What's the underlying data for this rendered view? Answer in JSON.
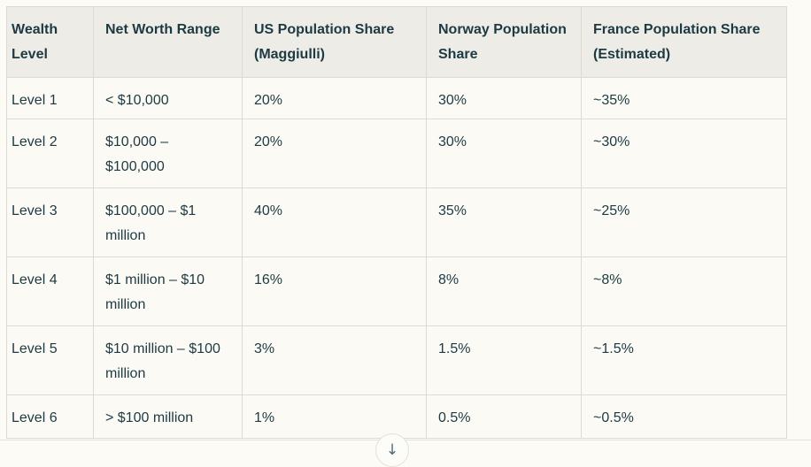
{
  "colors": {
    "page_background": "#fcfbf5",
    "header_background": "#edece6",
    "cell_background": "#fbfaf5",
    "border": "#dbdad3",
    "text": "#1d3a43"
  },
  "table": {
    "columns": [
      "Wealth Level",
      "Net Worth Range",
      "US Population Share (Maggiulli)",
      "Norway Population Share",
      "France Population Share (Estimated)"
    ],
    "rows": [
      [
        "Level 1",
        "< $10,000",
        "20%",
        "30%",
        "~35%"
      ],
      [
        "Level 2",
        "$10,000 – $100,000",
        "20%",
        "30%",
        "~30%"
      ],
      [
        "Level 3",
        "$100,000 – $1 million",
        "40%",
        "35%",
        "~25%"
      ],
      [
        "Level 4",
        "$1 million – $10 million",
        "16%",
        "8%",
        "~8%"
      ],
      [
        "Level 5",
        "$10 million – $100 million",
        "3%",
        "1.5%",
        "~1.5%"
      ],
      [
        "Level 6",
        "> $100 million",
        "1%",
        "0.5%",
        "~0.5%"
      ]
    ]
  },
  "footer": {
    "scroll_button_icon": "↓"
  }
}
